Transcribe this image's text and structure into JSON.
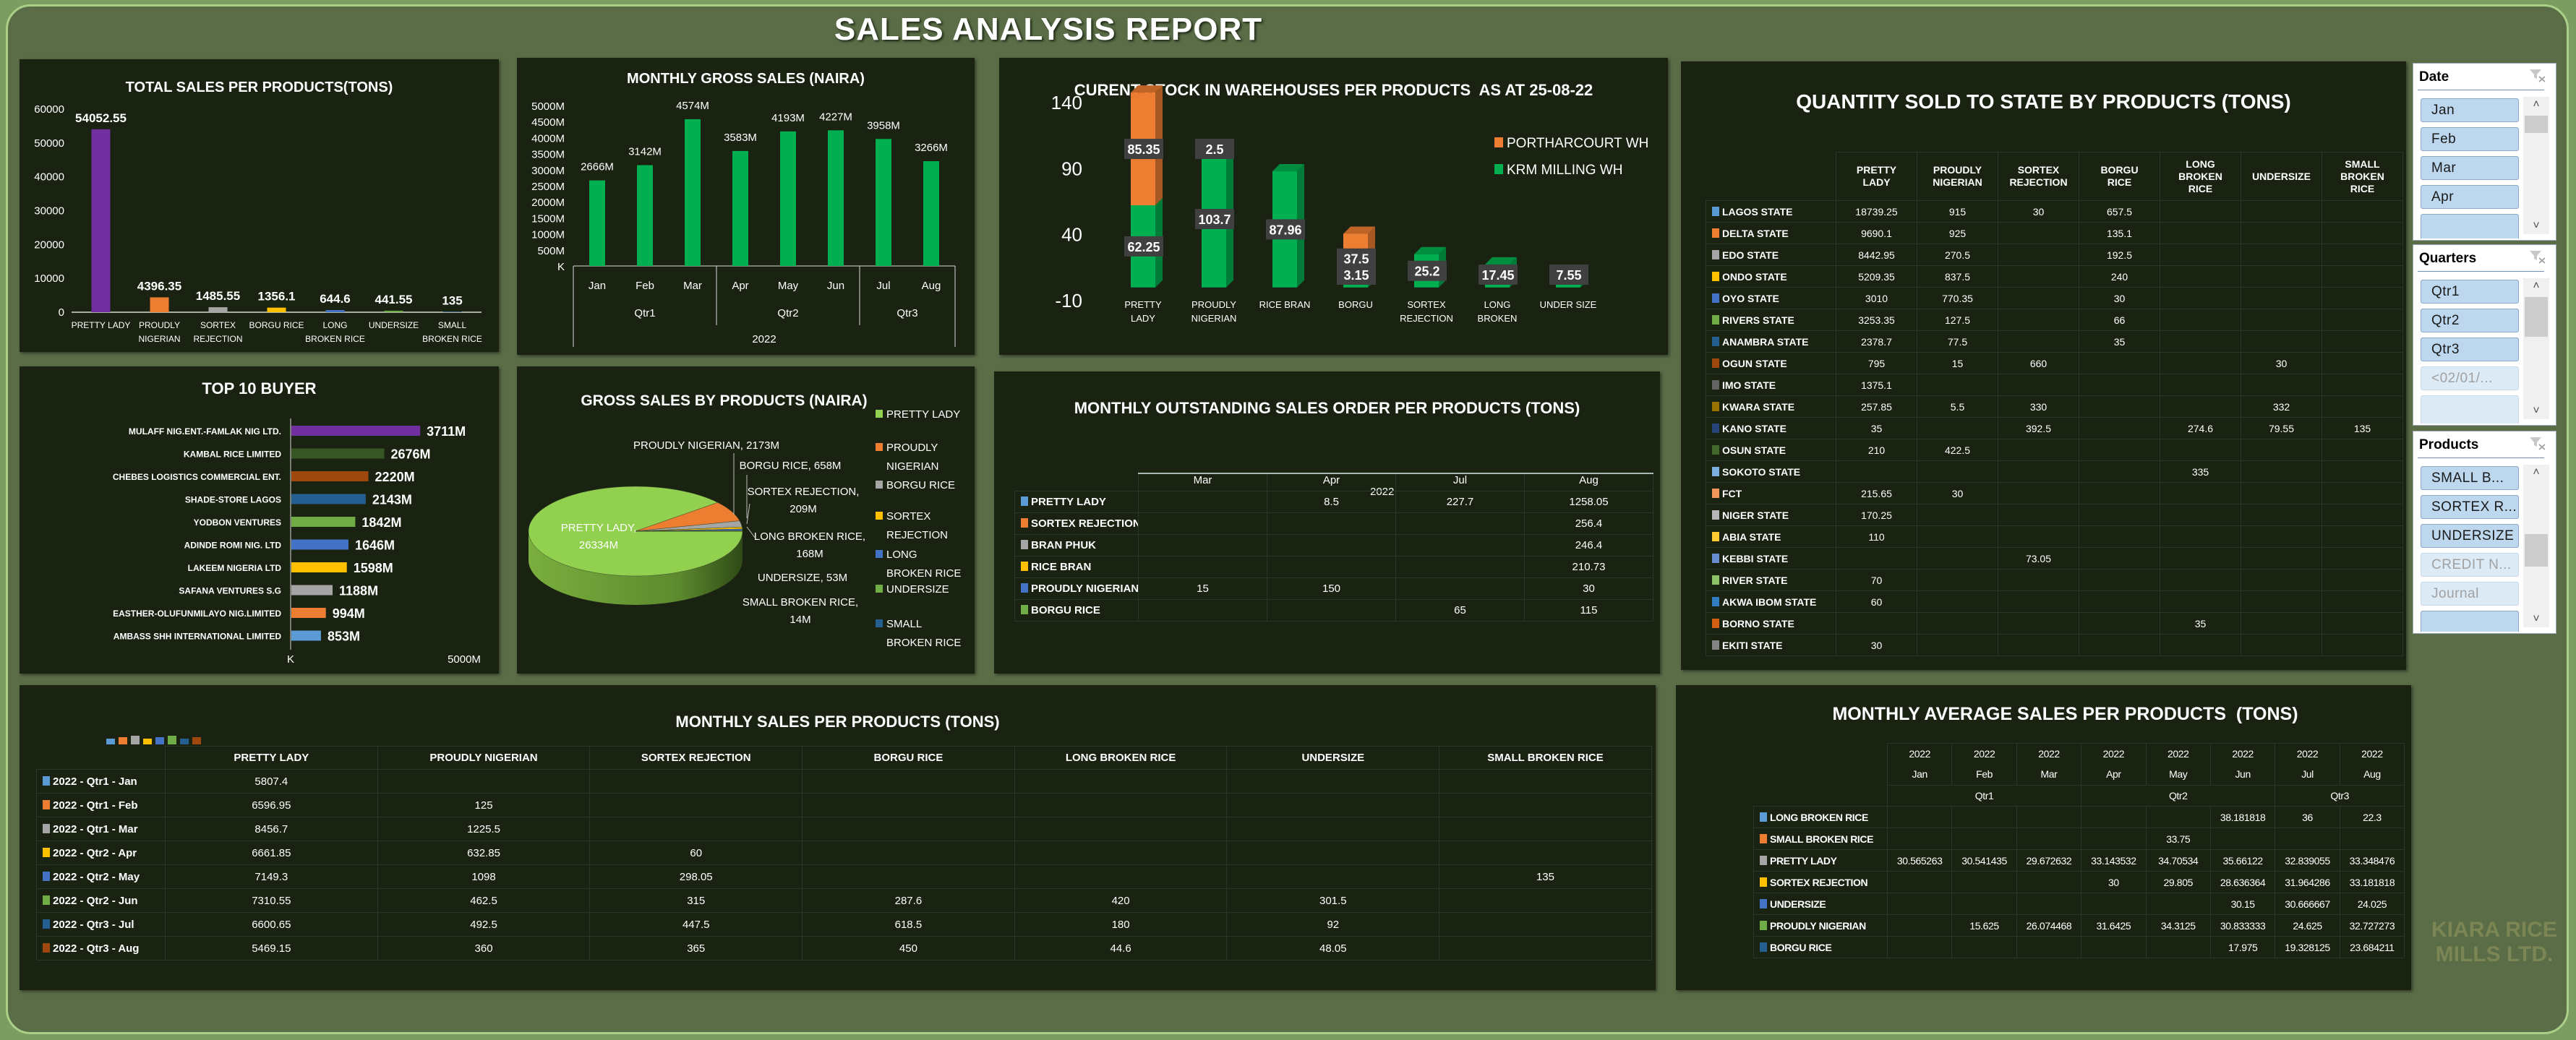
{
  "report_title": "SALES ANALYSIS REPORT",
  "watermark": "KIARA RICE MILLS LTD.",
  "chart_data": [
    {
      "type": "bar",
      "title": "TOTAL SALES PER PRODUCTS(TONS)",
      "categories": [
        "PRETTY LADY",
        "PROUDLY NIGERIAN",
        "SORTEX REJECTION",
        "BORGU RICE",
        "LONG BROKEN RICE",
        "UNDERSIZE",
        "SMALL BROKEN RICE"
      ],
      "values": [
        54052.55,
        4396.35,
        1485.55,
        1356.1,
        644.6,
        441.55,
        135
      ],
      "colors": [
        "#7030a0",
        "#ed7d31",
        "#a5a5a5",
        "#ffc000",
        "#4472c4",
        "#70ad47",
        "#255e91"
      ],
      "ylim": [
        0,
        60000
      ],
      "yticks": [
        0,
        10000,
        20000,
        30000,
        40000,
        50000,
        60000
      ],
      "xlabel": "",
      "ylabel": ""
    },
    {
      "type": "bar",
      "title": "MONTHLY GROSS SALES (NAIRA)",
      "categories": [
        "Jan",
        "Feb",
        "Mar",
        "Apr",
        "May",
        "Jun",
        "Jul",
        "Aug"
      ],
      "quarters": [
        {
          "label": "Qtr1",
          "months": 3
        },
        {
          "label": "Qtr2",
          "months": 3
        },
        {
          "label": "Qtr3",
          "months": 2
        }
      ],
      "year": "2022",
      "values": [
        2666,
        3142,
        4574,
        3583,
        4193,
        4227,
        3958,
        3266
      ],
      "unit": "M",
      "zero_label": "K",
      "ylim": [
        0,
        5000
      ],
      "yticks": [
        0,
        500,
        1000,
        1500,
        2000,
        2500,
        3000,
        3500,
        4000,
        4500,
        5000
      ],
      "color": "#00b050"
    },
    {
      "type": "bar",
      "stacked": true,
      "title": "CURENT STOCK IN WAREHOUSES PER PRODUCTS  AS AT 25-08-22",
      "categories": [
        "PRETTY LADY",
        "PROUDLY NIGERIAN",
        "RICE BRAN",
        "BORGU",
        "SORTEX REJECTION",
        "LONG BROKEN",
        "UNDER SIZE"
      ],
      "series": [
        {
          "name": "KRM MILLING WH",
          "color": "#00b050",
          "values": [
            62.25,
            103.7,
            87.96,
            3.15,
            25.2,
            17.45,
            7.55
          ]
        },
        {
          "name": "PORTHARCOURT WH",
          "color": "#ed7d31",
          "values": [
            85.35,
            2.5,
            null,
            37.5,
            null,
            null,
            null
          ]
        }
      ],
      "ylim": [
        -10,
        140
      ],
      "yticks": [
        -10,
        40,
        90,
        140
      ],
      "legend": "right"
    },
    {
      "type": "bar",
      "orientation": "horizontal",
      "title": "TOP 10 BUYER",
      "categories": [
        "MULAFF NIG.ENT.-FAMLAK NIG LTD.",
        "KAMBAL RICE LIMITED",
        "CHEBES LOGISTICS COMMERCIAL ENT.",
        "SHADE-STORE LAGOS",
        "YODBON VENTURES",
        "ADINDE ROMI NIG. LTD",
        "LAKEEM NIGERIA LTD",
        "SAFANA VENTURES S.G",
        "EASTHER-OLUFUNMILAYO NIG.LIMITED",
        "AMBASS SHH  INTERNATIONAL LIMITED"
      ],
      "values": [
        3711,
        2676,
        2220,
        2143,
        1842,
        1646,
        1598,
        1188,
        994,
        853
      ],
      "unit": "M",
      "colors": [
        "#7030a0",
        "#375623",
        "#9e480e",
        "#255e91",
        "#70ad47",
        "#4472c4",
        "#ffc000",
        "#a5a5a5",
        "#ed7d31",
        "#5b9bd5"
      ],
      "xlim": [
        0,
        5000
      ],
      "xtick_labels": [
        "K",
        "5000M"
      ]
    },
    {
      "type": "pie",
      "title": "GROSS SALES BY PRODUCTS (NAIRA)",
      "labels": [
        "PRETTY LADY",
        "PROUDLY NIGERIAN",
        "BORGU RICE",
        "SORTEX REJECTION",
        "LONG BROKEN RICE",
        "UNDERSIZE",
        "SMALL BROKEN RICE"
      ],
      "values": [
        26334,
        2173,
        658,
        209,
        168,
        53,
        14
      ],
      "unit": "M",
      "colors": [
        "#92d050",
        "#ed7d31",
        "#a5a5a5",
        "#ffc000",
        "#4472c4",
        "#70ad47",
        "#255e91"
      ],
      "legend": "right"
    }
  ],
  "tables": {
    "state": {
      "title": "QUANTITY SOLD TO STATE BY PRODUCTS (TONS)",
      "columns": [
        "PRETTY LADY",
        "PROUDLY NIGERIAN",
        "SORTEX REJECTION",
        "BORGU RICE",
        "LONG BROKEN RICE",
        "UNDERSIZE",
        "SMALL BROKEN RICE"
      ],
      "rows": [
        {
          "label": "LAGOS STATE",
          "color": "#5b9bd5",
          "values": [
            "18739.25",
            "915",
            "30",
            "657.5",
            "",
            "",
            ""
          ]
        },
        {
          "label": "DELTA STATE",
          "color": "#ed7d31",
          "values": [
            "9690.1",
            "925",
            "",
            "135.1",
            "",
            "",
            ""
          ]
        },
        {
          "label": "EDO STATE",
          "color": "#a5a5a5",
          "values": [
            "8442.95",
            "270.5",
            "",
            "192.5",
            "",
            "",
            ""
          ]
        },
        {
          "label": "ONDO STATE",
          "color": "#ffc000",
          "values": [
            "5209.35",
            "837.5",
            "",
            "240",
            "",
            "",
            ""
          ]
        },
        {
          "label": "OYO STATE",
          "color": "#4472c4",
          "values": [
            "3010",
            "770.35",
            "",
            "30",
            "",
            "",
            ""
          ]
        },
        {
          "label": "RIVERS STATE",
          "color": "#70ad47",
          "values": [
            "3253.35",
            "127.5",
            "",
            "66",
            "",
            "",
            ""
          ]
        },
        {
          "label": "ANAMBRA STATE",
          "color": "#255e91",
          "values": [
            "2378.7",
            "77.5",
            "",
            "35",
            "",
            "",
            ""
          ]
        },
        {
          "label": "OGUN STATE",
          "color": "#9e480e",
          "values": [
            "795",
            "15",
            "660",
            "",
            "",
            "30",
            ""
          ]
        },
        {
          "label": "IMO STATE",
          "color": "#636363",
          "values": [
            "1375.1",
            "",
            "",
            "",
            "",
            "",
            ""
          ]
        },
        {
          "label": "KWARA STATE",
          "color": "#997300",
          "values": [
            "257.85",
            "5.5",
            "330",
            "",
            "",
            "332",
            ""
          ]
        },
        {
          "label": "KANO STATE",
          "color": "#264478",
          "values": [
            "35",
            "",
            "392.5",
            "",
            "274.6",
            "79.55",
            "135"
          ]
        },
        {
          "label": "OSUN STATE",
          "color": "#43682b",
          "values": [
            "210",
            "422.5",
            "",
            "",
            "",
            "",
            ""
          ]
        },
        {
          "label": "SOKOTO STATE",
          "color": "#7cafdd",
          "values": [
            "",
            "",
            "",
            "",
            "335",
            "",
            ""
          ]
        },
        {
          "label": "FCT",
          "color": "#f1975a",
          "values": [
            "215.65",
            "30",
            "",
            "",
            "",
            "",
            ""
          ]
        },
        {
          "label": "NIGER STATE",
          "color": "#b7b7b7",
          "values": [
            "170.25",
            "",
            "",
            "",
            "",
            "",
            ""
          ]
        },
        {
          "label": "ABIA STATE",
          "color": "#ffcd33",
          "values": [
            "110",
            "",
            "",
            "",
            "",
            "",
            ""
          ]
        },
        {
          "label": "KEBBI STATE",
          "color": "#698ed0",
          "values": [
            "",
            "",
            "73.05",
            "",
            "",
            "",
            ""
          ]
        },
        {
          "label": "RIVER STATE",
          "color": "#8cc168",
          "values": [
            "70",
            "",
            "",
            "",
            "",
            "",
            ""
          ]
        },
        {
          "label": "AKWA IBOM STATE",
          "color": "#327dc2",
          "values": [
            "60",
            "",
            "",
            "",
            "",
            "",
            ""
          ]
        },
        {
          "label": "BORNO STATE",
          "color": "#d26012",
          "values": [
            "",
            "",
            "",
            "",
            "35",
            "",
            ""
          ]
        },
        {
          "label": "EKITI STATE",
          "color": "#848484",
          "values": [
            "30",
            "",
            "",
            "",
            "",
            "",
            ""
          ]
        }
      ]
    },
    "outstanding": {
      "title": "MONTHLY OUTSTANDING SALES ORDER PER PRODUCTS (TONS)",
      "year": "2022",
      "columns": [
        "Mar",
        "Apr",
        "Jul",
        "Aug"
      ],
      "rows": [
        {
          "label": "PRETTY LADY",
          "color": "#5b9bd5",
          "values": [
            "",
            "8.5",
            "227.7",
            "1258.05"
          ]
        },
        {
          "label": "SORTEX REJECTION",
          "color": "#ed7d31",
          "values": [
            "",
            "",
            "",
            "256.4"
          ]
        },
        {
          "label": "BRAN PHUK",
          "color": "#a5a5a5",
          "values": [
            "",
            "",
            "",
            "246.4"
          ]
        },
        {
          "label": "RICE BRAN",
          "color": "#ffc000",
          "values": [
            "",
            "",
            "",
            "210.73"
          ]
        },
        {
          "label": "PROUDLY NIGERIAN",
          "color": "#4472c4",
          "values": [
            "15",
            "150",
            "",
            "30"
          ]
        },
        {
          "label": "BORGU RICE",
          "color": "#70ad47",
          "values": [
            "",
            "",
            "65",
            "115"
          ]
        }
      ]
    },
    "monthly_sales": {
      "title": "MONTHLY SALES PER PRODUCTS (TONS)",
      "columns": [
        "PRETTY LADY",
        "PROUDLY NIGERIAN",
        "SORTEX REJECTION",
        "BORGU RICE",
        "LONG BROKEN RICE",
        "UNDERSIZE",
        "SMALL BROKEN RICE"
      ],
      "rows": [
        {
          "label": "2022 - Qtr1 - Jan",
          "color": "#5b9bd5",
          "values": [
            "5807.4",
            "",
            "",
            "",
            "",
            "",
            ""
          ]
        },
        {
          "label": "2022 - Qtr1 - Feb",
          "color": "#ed7d31",
          "values": [
            "6596.95",
            "125",
            "",
            "",
            "",
            "",
            ""
          ]
        },
        {
          "label": "2022 - Qtr1 - Mar",
          "color": "#a5a5a5",
          "values": [
            "8456.7",
            "1225.5",
            "",
            "",
            "",
            "",
            ""
          ]
        },
        {
          "label": "2022 - Qtr2 - Apr",
          "color": "#ffc000",
          "values": [
            "6661.85",
            "632.85",
            "60",
            "",
            "",
            "",
            ""
          ]
        },
        {
          "label": "2022 - Qtr2 - May",
          "color": "#4472c4",
          "values": [
            "7149.3",
            "1098",
            "298.05",
            "",
            "",
            "",
            "135"
          ]
        },
        {
          "label": "2022 - Qtr2 - Jun",
          "color": "#70ad47",
          "values": [
            "7310.55",
            "462.5",
            "315",
            "287.6",
            "420",
            "301.5",
            ""
          ]
        },
        {
          "label": "2022 - Qtr3 - Jul",
          "color": "#255e91",
          "values": [
            "6600.65",
            "492.5",
            "447.5",
            "618.5",
            "180",
            "92",
            ""
          ]
        },
        {
          "label": "2022 - Qtr3 - Aug",
          "color": "#9e480e",
          "values": [
            "5469.15",
            "360",
            "365",
            "450",
            "44.6",
            "48.05",
            ""
          ]
        }
      ]
    },
    "average": {
      "title": "MONTHLY AVERAGE SALES PER PRODUCTS  (TONS)",
      "year": "2022",
      "months": [
        "Jan",
        "Feb",
        "Mar",
        "Apr",
        "May",
        "Jun",
        "Jul",
        "Aug"
      ],
      "quarters": [
        {
          "label": "Qtr1",
          "months": 3
        },
        {
          "label": "Qtr2",
          "months": 3
        },
        {
          "label": "Qtr3",
          "months": 2
        }
      ],
      "rows": [
        {
          "label": "LONG BROKEN RICE",
          "color": "#5b9bd5",
          "values": [
            "",
            "",
            "",
            "",
            "",
            "38.181818",
            "36",
            "22.3"
          ]
        },
        {
          "label": "SMALL BROKEN RICE",
          "color": "#ed7d31",
          "values": [
            "",
            "",
            "",
            "",
            "33.75",
            "",
            "",
            ""
          ]
        },
        {
          "label": "PRETTY LADY",
          "color": "#a5a5a5",
          "values": [
            "30.565263",
            "30.541435",
            "29.672632",
            "33.143532",
            "34.70534",
            "35.66122",
            "32.839055",
            "33.348476"
          ]
        },
        {
          "label": "SORTEX REJECTION",
          "color": "#ffc000",
          "values": [
            "",
            "",
            "",
            "30",
            "29.805",
            "28.636364",
            "31.964286",
            "33.181818"
          ]
        },
        {
          "label": "UNDERSIZE",
          "color": "#4472c4",
          "values": [
            "",
            "",
            "",
            "",
            "",
            "30.15",
            "30.666667",
            "24.025"
          ]
        },
        {
          "label": "PROUDLY NIGERIAN",
          "color": "#70ad47",
          "values": [
            "",
            "15.625",
            "26.074468",
            "31.6425",
            "34.3125",
            "30.833333",
            "24.625",
            "32.727273"
          ]
        },
        {
          "label": "BORGU RICE",
          "color": "#255e91",
          "values": [
            "",
            "",
            "",
            "",
            "",
            "17.975",
            "19.328125",
            "23.684211"
          ]
        }
      ]
    }
  },
  "slicers": [
    {
      "title": "Date",
      "items": [
        {
          "label": "Jan",
          "selected": true
        },
        {
          "label": "Feb",
          "selected": true
        },
        {
          "label": "Mar",
          "selected": true
        },
        {
          "label": "Apr",
          "selected": true
        }
      ]
    },
    {
      "title": "Quarters",
      "items": [
        {
          "label": "Qtr1",
          "selected": true
        },
        {
          "label": "Qtr2",
          "selected": true
        },
        {
          "label": "Qtr3",
          "selected": true
        },
        {
          "label": "<02/01/...",
          "selected": false
        }
      ]
    },
    {
      "title": "Products",
      "items": [
        {
          "label": "SMALL B...",
          "selected": true
        },
        {
          "label": "SORTEX R...",
          "selected": true
        },
        {
          "label": "UNDERSIZE",
          "selected": true
        },
        {
          "label": "CREDIT N...",
          "selected": false
        },
        {
          "label": "Journal",
          "selected": false
        }
      ]
    }
  ]
}
